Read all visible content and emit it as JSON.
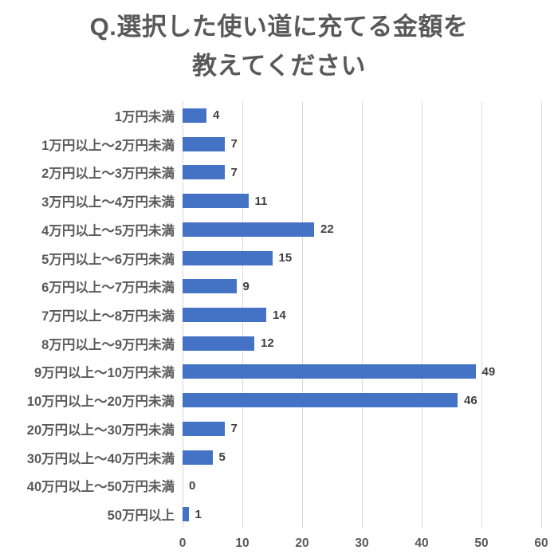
{
  "title": {
    "line1": "Q.選択した使い道に充てる金額を",
    "line2": "教えてください"
  },
  "chart_data": {
    "type": "bar",
    "orientation": "horizontal",
    "title": "Q.選択した使い道に充てる金額を教えてください",
    "categories": [
      "1万円未満",
      "1万円以上～2万円未満",
      "2万円以上～3万円未満",
      "3万円以上～4万円未満",
      "4万円以上～5万円未満",
      "5万円以上～6万円未満",
      "6万円以上～7万円未満",
      "7万円以上～8万円未満",
      "8万円以上～9万円未満",
      "9万円以上～10万円未満",
      "10万円以上～20万円未満",
      "20万円以上～30万円未満",
      "30万円以上～40万円未満",
      "40万円以上～50万円未満",
      "50万円以上"
    ],
    "values": [
      4,
      7,
      7,
      11,
      22,
      15,
      9,
      14,
      12,
      49,
      46,
      7,
      5,
      0,
      1
    ],
    "xlabel": "",
    "ylabel": "",
    "xlim": [
      0,
      60
    ],
    "x_ticks": [
      0,
      10,
      20,
      30,
      40,
      50,
      60
    ],
    "grid": true,
    "legend": false,
    "value_labels": true
  },
  "colors": {
    "bar": "#4472c4",
    "title_text": "#595959",
    "category_text": "#595959",
    "value_text": "#3f3f3f",
    "gridline": "#d9d9d9",
    "background": "#ffffff"
  }
}
